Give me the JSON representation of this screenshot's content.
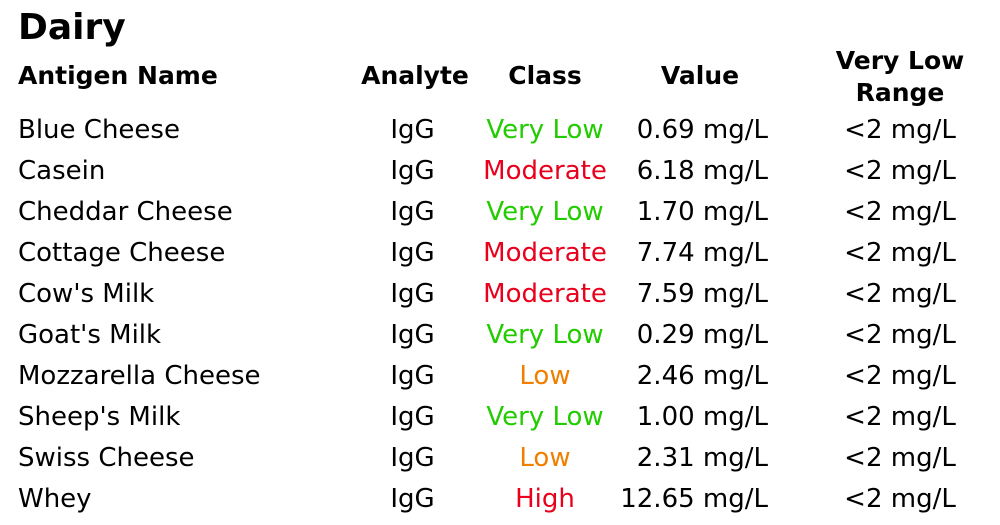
{
  "section": {
    "title": "Dairy"
  },
  "headers": {
    "antigen_name": "Antigen Name",
    "analyte": "Analyte",
    "class": "Class",
    "value": "Value",
    "range_line1": "Very Low",
    "range_line2": "Range"
  },
  "class_colors": {
    "Very Low": "#22cc00",
    "Low": "#f07f00",
    "Moderate": "#e8001c",
    "High": "#e8001c"
  },
  "rows": [
    {
      "name": "Blue Cheese",
      "analyte": "IgG",
      "class": "Very Low",
      "value": "0.69 mg/L",
      "range": "<2 mg/L"
    },
    {
      "name": "Casein",
      "analyte": "IgG",
      "class": "Moderate",
      "value": "6.18 mg/L",
      "range": "<2 mg/L"
    },
    {
      "name": "Cheddar Cheese",
      "analyte": "IgG",
      "class": "Very Low",
      "value": "1.70 mg/L",
      "range": "<2 mg/L"
    },
    {
      "name": "Cottage Cheese",
      "analyte": "IgG",
      "class": "Moderate",
      "value": "7.74 mg/L",
      "range": "<2 mg/L"
    },
    {
      "name": "Cow's Milk",
      "analyte": "IgG",
      "class": "Moderate",
      "value": "7.59 mg/L",
      "range": "<2 mg/L"
    },
    {
      "name": "Goat's Milk",
      "analyte": "IgG",
      "class": "Very Low",
      "value": "0.29 mg/L",
      "range": "<2 mg/L"
    },
    {
      "name": "Mozzarella Cheese",
      "analyte": "IgG",
      "class": "Low",
      "value": "2.46 mg/L",
      "range": "<2 mg/L"
    },
    {
      "name": "Sheep's Milk",
      "analyte": "IgG",
      "class": "Very Low",
      "value": "1.00 mg/L",
      "range": "<2 mg/L"
    },
    {
      "name": "Swiss Cheese",
      "analyte": "IgG",
      "class": "Low",
      "value": "2.31 mg/L",
      "range": "<2 mg/L"
    },
    {
      "name": "Whey",
      "analyte": "IgG",
      "class": "High",
      "value": "12.65 mg/L",
      "range": "<2 mg/L"
    }
  ]
}
